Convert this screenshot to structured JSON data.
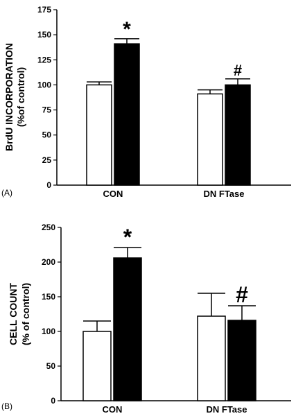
{
  "chart_data": [
    {
      "type": "bar",
      "panel_label": "(A)",
      "ylabel_line1": "BrdU INCORPORATION",
      "ylabel_line2": "(%of control)",
      "xlabel": "",
      "ylim": [
        0,
        175
      ],
      "yticks": [
        0,
        25,
        50,
        75,
        100,
        125,
        150,
        175
      ],
      "categories": [
        "CON",
        "DN FTase"
      ],
      "series": [
        {
          "fill": "#ffffff",
          "values": [
            100,
            91
          ],
          "errors": [
            3,
            4
          ]
        },
        {
          "fill": "#000000",
          "values": [
            141,
            100
          ],
          "errors": [
            5,
            6
          ]
        }
      ],
      "annotations": [
        {
          "text": "*",
          "category": 0,
          "series": 1
        },
        {
          "text": "#",
          "category": 1,
          "series": 1
        }
      ]
    },
    {
      "type": "bar",
      "panel_label": "(B)",
      "ylabel_line1": "CELL COUNT",
      "ylabel_line2": "(% of control)",
      "xlabel": "",
      "ylim": [
        0,
        250
      ],
      "yticks": [
        0,
        50,
        100,
        150,
        200,
        250
      ],
      "categories": [
        "CON",
        "DN FTase"
      ],
      "series": [
        {
          "fill": "#ffffff",
          "values": [
            100,
            122
          ],
          "errors": [
            15,
            33
          ]
        },
        {
          "fill": "#000000",
          "values": [
            206,
            116
          ],
          "errors": [
            15,
            21
          ]
        }
      ],
      "annotations": [
        {
          "text": "*",
          "category": 0,
          "series": 1
        },
        {
          "text": "#",
          "category": 1,
          "series": 1
        }
      ]
    }
  ]
}
